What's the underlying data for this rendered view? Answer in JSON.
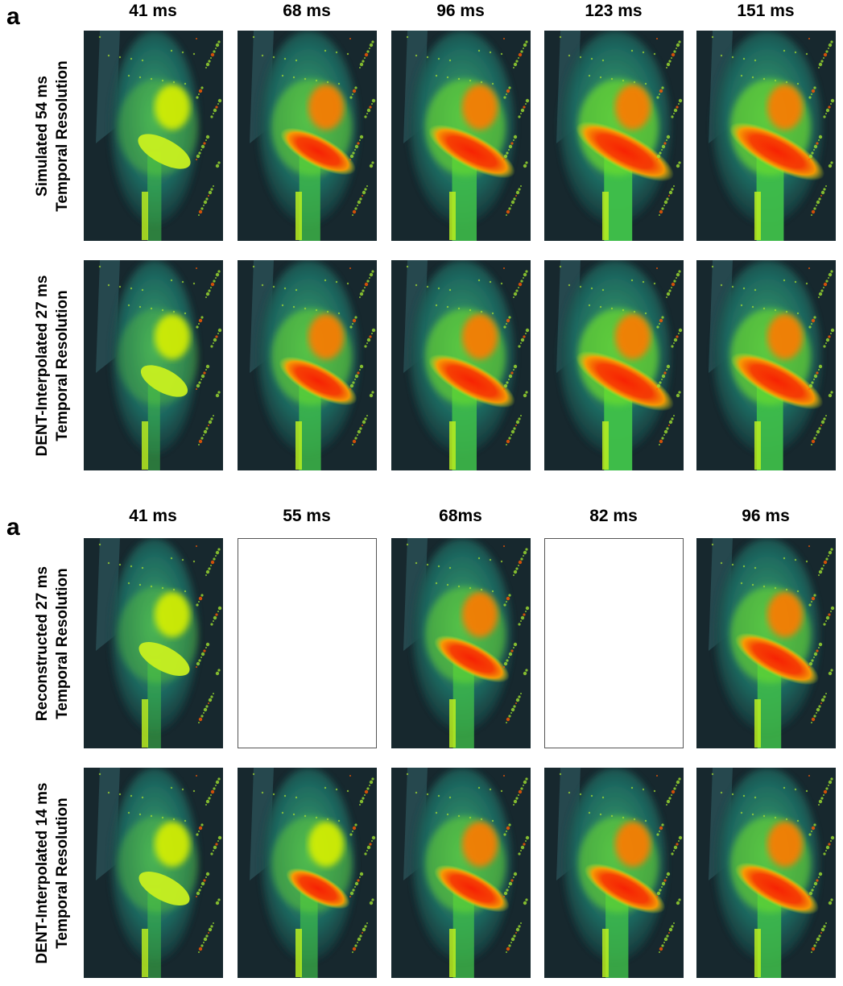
{
  "figure": {
    "panels": [
      {
        "letter": "a",
        "columns": [
          "41 ms",
          "68 ms",
          "96 ms",
          "123 ms",
          "151 ms"
        ],
        "rows": [
          {
            "label_line1": "Simulated 54 ms",
            "label_line2": "Temporal Resolution",
            "frames": [
              {
                "empty": false,
                "heat": 0.15
              },
              {
                "empty": false,
                "heat": 0.55
              },
              {
                "empty": false,
                "heat": 0.75
              },
              {
                "empty": false,
                "heat": 0.95
              },
              {
                "empty": false,
                "heat": 0.9
              }
            ]
          },
          {
            "label_line1": "DENT-Interpolated 27 ms",
            "label_line2": "Temporal Resolution",
            "frames": [
              {
                "empty": false,
                "heat": 0.05
              },
              {
                "empty": false,
                "heat": 0.6
              },
              {
                "empty": false,
                "heat": 0.75
              },
              {
                "empty": false,
                "heat": 0.95
              },
              {
                "empty": false,
                "heat": 0.85
              }
            ]
          }
        ]
      },
      {
        "letter": "a",
        "columns": [
          "41 ms",
          "55 ms",
          "68ms",
          "82 ms",
          "96 ms"
        ],
        "rows": [
          {
            "label_line1": "Reconstructed 27 ms",
            "label_line2": "Temporal Resolution",
            "frames": [
              {
                "empty": false,
                "heat": 0.12
              },
              {
                "empty": true
              },
              {
                "empty": false,
                "heat": 0.55
              },
              {
                "empty": true
              },
              {
                "empty": false,
                "heat": 0.7
              }
            ]
          },
          {
            "label_line1": "DENT-Interpolated 14 ms",
            "label_line2": "Temporal Resolution",
            "frames": [
              {
                "empty": false,
                "heat": 0.12
              },
              {
                "empty": false,
                "heat": 0.35
              },
              {
                "empty": false,
                "heat": 0.55
              },
              {
                "empty": false,
                "heat": 0.65
              },
              {
                "empty": false,
                "heat": 0.7
              }
            ]
          }
        ]
      }
    ]
  }
}
